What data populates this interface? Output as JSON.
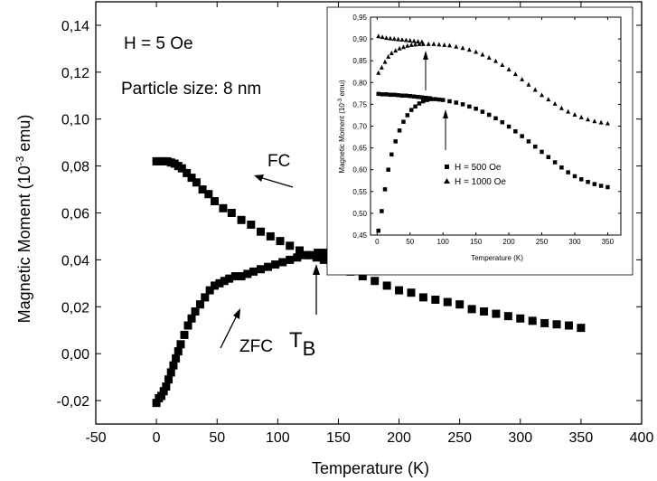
{
  "chart_data": [
    {
      "type": "scatter",
      "title": "",
      "xlabel": "Temperature (K)",
      "ylabel": "Magnetic Moment (10<sup>-3</sup> emu)",
      "ylabel_parts": {
        "pre": "Magnetic Moment (10",
        "sup": "-3",
        "post": " emu)"
      },
      "xlim": [
        -50,
        400
      ],
      "ylim": [
        -0.03,
        0.15
      ],
      "x_ticks": [
        -50,
        0,
        50,
        100,
        150,
        200,
        250,
        300,
        350,
        400
      ],
      "x_tick_labels": [
        "-50",
        "0",
        "50",
        "100",
        "150",
        "200",
        "250",
        "300",
        "350",
        "400"
      ],
      "y_ticks": [
        -0.02,
        0.0,
        0.02,
        0.04,
        0.06,
        0.08,
        0.1,
        0.12,
        0.14
      ],
      "y_tick_labels": [
        "-0,02",
        "0,00",
        "0,02",
        "0,04",
        "0,06",
        "0,08",
        "0,10",
        "0,12",
        "0,14"
      ],
      "annotations": {
        "field": "H = 5 Oe",
        "size": "Particle size: 8 nm",
        "fc": "FC",
        "zfc": "ZFC",
        "tb_main": "T",
        "tb_sub": "B"
      },
      "marker": "square",
      "series": [
        {
          "x": [
            0,
            3,
            6,
            9,
            12,
            15,
            18,
            21,
            25,
            29,
            33,
            38,
            43,
            48,
            55,
            62,
            70,
            78,
            86,
            94,
            102,
            110,
            118,
            126,
            132,
            138,
            144,
            150,
            160,
            170,
            180,
            190,
            200,
            210,
            220,
            230,
            240,
            250,
            260,
            270,
            280,
            290,
            300,
            310,
            320,
            330,
            340,
            350
          ],
          "y": [
            0.082,
            0.082,
            0.082,
            0.082,
            0.0815,
            0.081,
            0.08,
            0.079,
            0.077,
            0.075,
            0.073,
            0.07,
            0.068,
            0.065,
            0.062,
            0.06,
            0.057,
            0.055,
            0.052,
            0.05,
            0.048,
            0.046,
            0.044,
            0.042,
            0.041,
            0.04,
            0.039,
            0.037,
            0.035,
            0.033,
            0.031,
            0.029,
            0.027,
            0.026,
            0.024,
            0.023,
            0.022,
            0.021,
            0.019,
            0.018,
            0.017,
            0.016,
            0.015,
            0.014,
            0.013,
            0.0125,
            0.012,
            0.011
          ]
        },
        {
          "x": [
            0,
            2,
            4,
            6,
            8,
            10,
            12,
            14,
            16,
            18,
            20,
            23,
            26,
            29,
            32,
            36,
            40,
            44,
            48,
            52,
            56,
            60,
            65,
            70,
            75,
            80,
            86,
            92,
            98,
            104,
            110,
            116,
            122,
            128,
            133,
            138,
            143,
            148,
            155,
            162,
            170
          ],
          "y": [
            -0.021,
            -0.019,
            -0.018,
            -0.016,
            -0.014,
            -0.011,
            -0.008,
            -0.005,
            -0.002,
            0.001,
            0.004,
            0.008,
            0.012,
            0.015,
            0.018,
            0.021,
            0.024,
            0.027,
            0.029,
            0.03,
            0.031,
            0.032,
            0.033,
            0.033,
            0.034,
            0.035,
            0.036,
            0.037,
            0.038,
            0.039,
            0.04,
            0.041,
            0.042,
            0.042,
            0.043,
            0.043,
            0.043,
            0.042,
            0.041,
            0.039,
            0.037
          ]
        }
      ]
    },
    {
      "type": "scatter",
      "title": "",
      "xlabel": "Temperature (K)",
      "ylabel": "Magnetic Moment (10<sup>-3</sup> emu)",
      "ylabel_parts": {
        "pre": "Magnetic Moment (10",
        "sup": "-3",
        "post": " emu)"
      },
      "xlim": [
        -10,
        370
      ],
      "ylim": [
        0.45,
        0.95
      ],
      "x_ticks": [
        0,
        50,
        100,
        150,
        200,
        250,
        300,
        350
      ],
      "x_tick_labels": [
        "0",
        "50",
        "100",
        "150",
        "200",
        "250",
        "300",
        "350"
      ],
      "y_ticks": [
        0.45,
        0.5,
        0.55,
        0.6,
        0.65,
        0.7,
        0.75,
        0.8,
        0.85,
        0.9,
        0.95
      ],
      "y_tick_labels": [
        "0,45",
        "0,50",
        "0,55",
        "0,60",
        "0,65",
        "0,70",
        "0,75",
        "0,80",
        "0,85",
        "0,90",
        "0,95"
      ],
      "legend": {
        "position": "center-right"
      },
      "series": [
        {
          "name": "H = 500 Oe",
          "marker": "square",
          "x": [
            2,
            7,
            12,
            17,
            22,
            28,
            34,
            40,
            46,
            52,
            58,
            64,
            70,
            76,
            82,
            88,
            94,
            100,
            110,
            120,
            130,
            140,
            150,
            160,
            170,
            180,
            190,
            200,
            210,
            220,
            230,
            240,
            250,
            260,
            270,
            280,
            290,
            300,
            310,
            320,
            330,
            340,
            350
          ],
          "y": [
            0.46,
            0.505,
            0.555,
            0.6,
            0.635,
            0.665,
            0.69,
            0.71,
            0.725,
            0.737,
            0.745,
            0.752,
            0.757,
            0.76,
            0.762,
            0.762,
            0.761,
            0.76,
            0.757,
            0.754,
            0.75,
            0.745,
            0.74,
            0.733,
            0.726,
            0.718,
            0.709,
            0.699,
            0.688,
            0.677,
            0.665,
            0.653,
            0.641,
            0.629,
            0.617,
            0.605,
            0.594,
            0.585,
            0.578,
            0.572,
            0.567,
            0.563,
            0.56
          ]
        },
        {
          "name": "H = 500 Oe FC",
          "marker": "square",
          "x": [
            2,
            8,
            14,
            20,
            26,
            32,
            38,
            44,
            50,
            56,
            62,
            68,
            74,
            80
          ],
          "y": [
            0.774,
            0.773,
            0.773,
            0.772,
            0.772,
            0.771,
            0.77,
            0.77,
            0.769,
            0.768,
            0.767,
            0.766,
            0.765,
            0.764
          ]
        },
        {
          "name": "H = 1000 Oe",
          "marker": "triangle",
          "x": [
            2,
            7,
            12,
            17,
            22,
            28,
            34,
            40,
            46,
            52,
            58,
            64,
            70,
            78,
            86,
            94,
            102,
            110,
            120,
            130,
            140,
            150,
            160,
            170,
            180,
            190,
            200,
            210,
            220,
            230,
            240,
            250,
            260,
            270,
            280,
            290,
            300,
            310,
            320,
            330,
            340,
            350
          ],
          "y": [
            0.823,
            0.835,
            0.848,
            0.86,
            0.868,
            0.874,
            0.879,
            0.882,
            0.885,
            0.887,
            0.888,
            0.889,
            0.889,
            0.889,
            0.889,
            0.888,
            0.887,
            0.886,
            0.883,
            0.88,
            0.876,
            0.871,
            0.865,
            0.858,
            0.85,
            0.841,
            0.831,
            0.82,
            0.808,
            0.796,
            0.784,
            0.772,
            0.762,
            0.752,
            0.742,
            0.734,
            0.727,
            0.721,
            0.716,
            0.712,
            0.709,
            0.707
          ]
        },
        {
          "name": "H = 1000 Oe FC",
          "marker": "triangle",
          "x": [
            2,
            8,
            14,
            20,
            26,
            32,
            38,
            44,
            50,
            56,
            62,
            68
          ],
          "y": [
            0.907,
            0.905,
            0.903,
            0.902,
            0.901,
            0.9,
            0.899,
            0.898,
            0.897,
            0.896,
            0.895,
            0.894
          ]
        }
      ],
      "legend_entries": [
        "H = 500 Oe",
        "H = 1000 Oe"
      ]
    }
  ]
}
